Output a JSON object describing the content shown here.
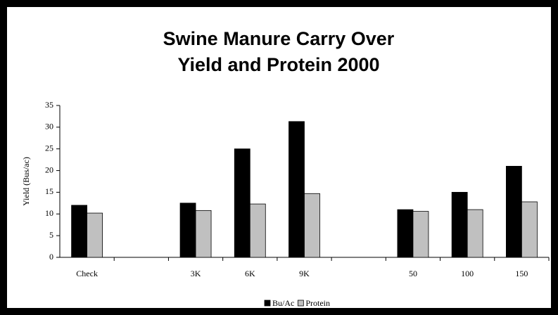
{
  "chart_data": {
    "type": "bar",
    "title": [
      "Swine Manure Carry Over",
      "Yield and Protein 2000"
    ],
    "y_label": "Yield (Bus/ac)",
    "categories": [
      "Check",
      null,
      "3K",
      "6K",
      "9K",
      null,
      "50",
      "100",
      "150"
    ],
    "series": [
      {
        "name": "Bu/Ac",
        "color": "#000000",
        "values": [
          12,
          null,
          12.5,
          25,
          31.3,
          null,
          11,
          15,
          21
        ]
      },
      {
        "name": "Protein",
        "color": "#c0c0c0",
        "values": [
          10.2,
          null,
          10.8,
          12.3,
          14.7,
          null,
          10.6,
          11,
          12.8
        ]
      }
    ],
    "ylim": [
      0,
      35
    ],
    "yticks": [
      0,
      5,
      10,
      15,
      20,
      25,
      30,
      35
    ],
    "grid": false,
    "legend": "bottom"
  }
}
